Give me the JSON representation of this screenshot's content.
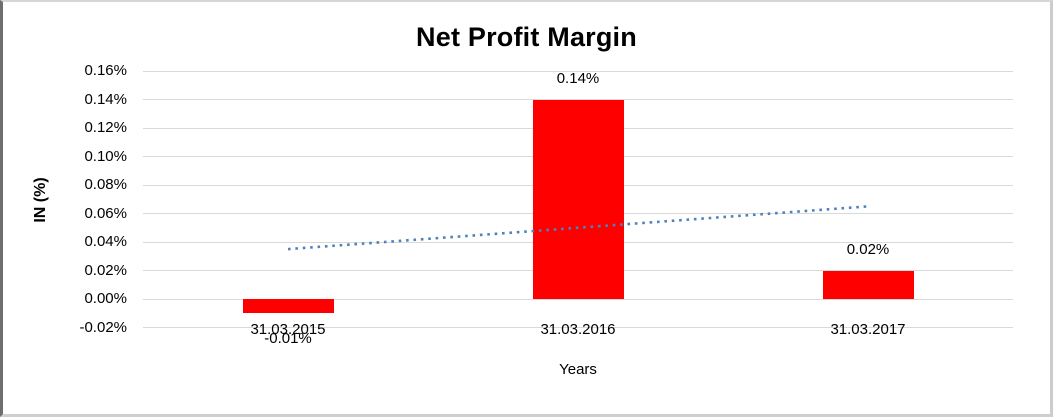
{
  "chart_data": {
    "type": "bar",
    "title": "Net Profit Margin",
    "xlabel": "Years",
    "ylabel": "IN (%)",
    "categories": [
      "31.03.2015",
      "31.03.2016",
      "31.03.2017"
    ],
    "values": [
      -0.01,
      0.14,
      0.02
    ],
    "data_labels": [
      "-0.01%",
      "0.14%",
      "0.02%"
    ],
    "ylim": [
      -0.02,
      0.16
    ],
    "ytick_step": 0.02,
    "ytick_labels": [
      "0.16%",
      "0.14%",
      "0.12%",
      "0.10%",
      "0.08%",
      "0.06%",
      "0.04%",
      "0.02%",
      "0.00%",
      "-0.02%"
    ],
    "ytick_values": [
      0.16,
      0.14,
      0.12,
      0.1,
      0.08,
      0.06,
      0.04,
      0.02,
      0.0,
      -0.02
    ],
    "grid": "horizontal",
    "legend": "none",
    "bar_color": "#FF0000",
    "gridline_color": "#d9d9d9",
    "trendline": {
      "type": "linear",
      "style": "dotted",
      "color": "#4F81BD",
      "start_value": 0.035,
      "end_value": 0.065
    }
  }
}
